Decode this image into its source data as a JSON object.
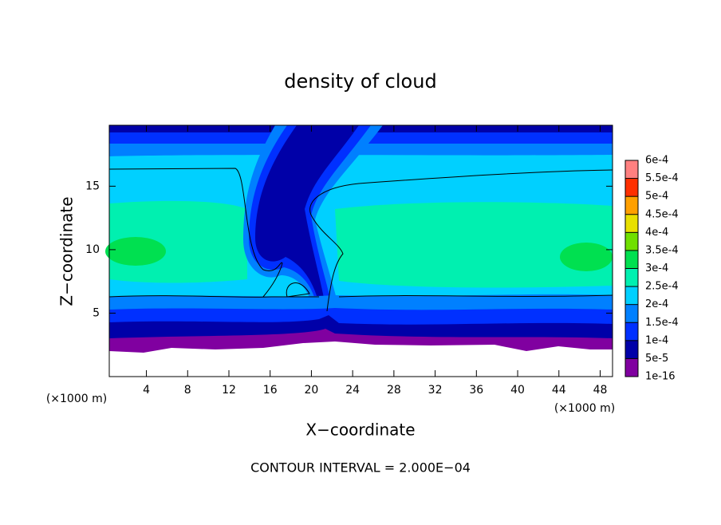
{
  "chart_data": {
    "type": "contour",
    "title": "density of cloud",
    "x_label": "X−coordinate",
    "y_label": "Z−coordinate",
    "x_unit": "(×1000 m)",
    "y_unit": "(×1000 m)",
    "annotation": "CONTOUR INTERVAL = 2.000E−04",
    "xlim": [
      0.4,
      49.2
    ],
    "xticks": [
      4,
      8,
      12,
      16,
      20,
      24,
      28,
      32,
      36,
      40,
      44,
      48
    ],
    "ylim": [
      0,
      19.8
    ],
    "yticks": [
      5,
      10,
      15
    ],
    "colorbar": {
      "lim": [
        1e-16,
        0.0006
      ],
      "ticks": [
        1e-16,
        {
          "value": 5e-05,
          "label": "5e-5"
        },
        {
          "value": 0.0001,
          "label": "1e-4"
        },
        {
          "value": 0.00015,
          "label": "1.5e-4"
        },
        {
          "value": 0.0002,
          "label": "2e-4"
        },
        {
          "value": 0.00025,
          "label": "2.5e-4"
        },
        {
          "value": 0.0003,
          "label": "3e-4"
        },
        {
          "value": 0.00035,
          "label": "3.5e-4"
        },
        {
          "value": 0.0004,
          "label": "4e-4"
        },
        {
          "value": 0.00045,
          "label": "4.5e-4"
        },
        {
          "value": 0.0005,
          "label": "5e-4"
        },
        {
          "value": 0.00055,
          "label": "5.5e-4"
        },
        {
          "value": 0.0006,
          "label": "6e-4"
        }
      ],
      "colors": [
        "#8000a0",
        "#0000a8",
        "#0030ff",
        "#0080ff",
        "#00d0ff",
        "#00f0b0",
        "#00e050",
        "#70e000",
        "#e8e000",
        "#ffa000",
        "#ff3000",
        "#ff8080"
      ]
    }
  }
}
